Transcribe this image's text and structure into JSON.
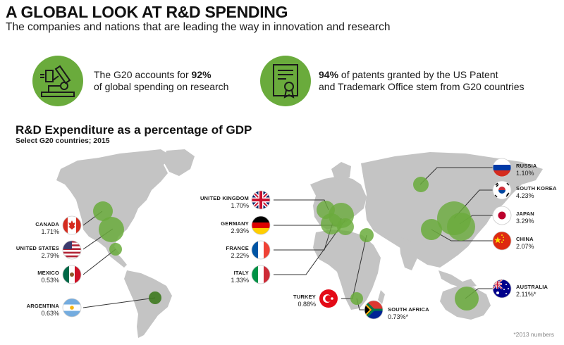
{
  "header": {
    "title": "A GLOBAL LOOK AT R&D SPENDING",
    "subtitle": "The companies and nations that are leading the way in innovation and research"
  },
  "stats": [
    {
      "icon": "microscope-icon",
      "pre": "The G20 accounts for ",
      "bold": "92%",
      "post": "of global spending on research"
    },
    {
      "icon": "certificate-icon",
      "pre": "",
      "bold": "94%",
      "post1": " of patents granted by the US Patent",
      "post": "and Trademark Office stem from G20 countries"
    }
  ],
  "section": {
    "title": "R&D Expenditure as a percentage of GDP",
    "subtitle": "Select G20 countries; 2015"
  },
  "countries": {
    "canada": {
      "name": "CANADA",
      "value": "1.71%"
    },
    "united_states": {
      "name": "UNITED STATES",
      "value": "2.79%"
    },
    "mexico": {
      "name": "MEXICO",
      "value": "0.53%"
    },
    "argentina": {
      "name": "ARGENTINA",
      "value": "0.63%"
    },
    "united_kingdom": {
      "name": "UNITED KINGDOM",
      "value": "1.70%"
    },
    "germany": {
      "name": "GERMANY",
      "value": "2.93%"
    },
    "france": {
      "name": "FRANCE",
      "value": "2.22%"
    },
    "italy": {
      "name": "ITALY",
      "value": "1.33%"
    },
    "turkey": {
      "name": "TURKEY",
      "value": "0.88%"
    },
    "south_africa": {
      "name": "SOUTH AFRICA",
      "value": "0.73%*"
    },
    "russia": {
      "name": "RUSSIA",
      "value": "1.10%"
    },
    "south_korea": {
      "name": "SOUTH KOREA",
      "value": "4.23%"
    },
    "japan": {
      "name": "JAPAN",
      "value": "3.29%"
    },
    "china": {
      "name": "CHINA",
      "value": "2.07%"
    },
    "australia": {
      "name": "AUSTRALIA",
      "value": "2.11%*"
    }
  },
  "colors": {
    "green": "#6aab3c",
    "dark_green": "#3e7a1f",
    "land": "#c4c4c4",
    "line": "#333333"
  },
  "footnote": "*2013 numbers"
}
